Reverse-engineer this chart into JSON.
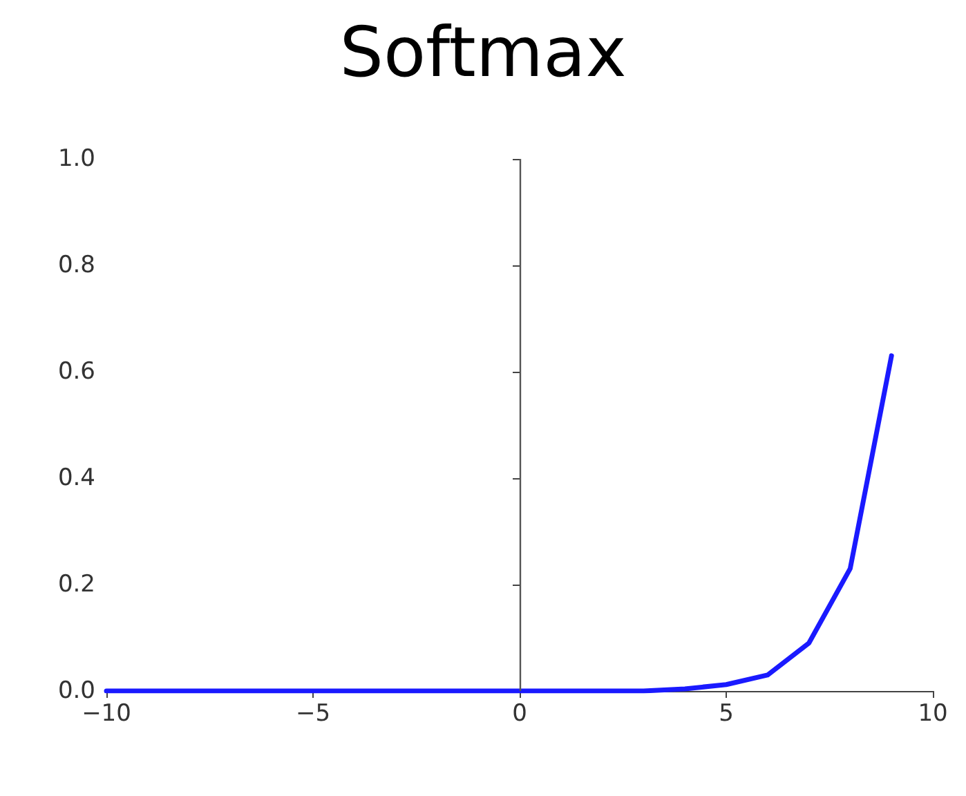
{
  "chart_data": {
    "type": "line",
    "title": "Softmax",
    "x": [
      -10,
      -9,
      -8,
      -7,
      -6,
      -5,
      -4,
      -3,
      -2,
      -1,
      0,
      1,
      2,
      3,
      4,
      5,
      6,
      7,
      8,
      9
    ],
    "series": [
      {
        "color": "#1a1aff",
        "values": [
          0,
          0,
          0,
          0,
          0,
          0,
          0,
          0,
          0,
          0,
          0,
          0,
          0,
          0,
          0.004,
          0.012,
          0.03,
          0.09,
          0.23,
          0.63
        ]
      }
    ],
    "xlim": [
      -10,
      10
    ],
    "xticks": [
      {
        "value": -10,
        "label": "−10"
      },
      {
        "value": -5,
        "label": "−5"
      },
      0,
      5,
      10
    ],
    "ylim": [
      0,
      1
    ],
    "yticks": [
      {
        "value": 0,
        "label": "0.0"
      },
      0.2,
      0.4,
      0.6,
      0.8,
      {
        "value": 1,
        "label": "1.0"
      }
    ],
    "ref_lines": [
      {
        "axis": "x",
        "value": 0,
        "color": "#555555",
        "line_style": "solid"
      }
    ],
    "grid": false,
    "marker": "none",
    "line_style": "solid"
  }
}
